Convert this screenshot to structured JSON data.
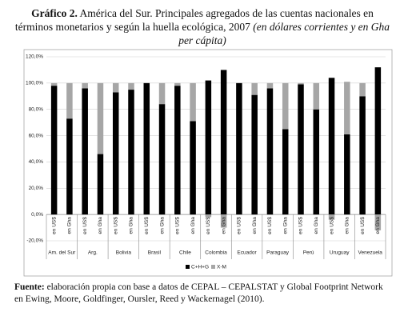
{
  "chart_data": {
    "type": "stacked_bar",
    "title_label": "Gráfico 2.",
    "title": "América del Sur. Principales agregados de las cuentas nacionales en términos monetarios y según la huella ecológica, 2007",
    "title_italic": "(en dólares corrientes y en Gha per cápita)",
    "categories": [
      "en US$",
      "en Gha",
      "en US$",
      "en Gha",
      "en US$",
      "en Gha",
      "en US$",
      "en Gha",
      "en US$",
      "en Gha",
      "en US$",
      "en Gha",
      "en US$",
      "en Gha",
      "en US$",
      "en Gha",
      "en US$",
      "en Gha",
      "en US$",
      "en Gha",
      "en US$",
      "en Gha"
    ],
    "groups": [
      "Am. del Sur",
      "Arg.",
      "Bolivia",
      "Brasil",
      "Chile",
      "Colombia",
      "Ecuador",
      "Paraguay",
      "Perú",
      "Uruguay",
      "Venezuela"
    ],
    "series": [
      {
        "name": "C+H+G",
        "color": "#000000",
        "values": [
          98,
          73,
          96,
          46,
          93,
          95,
          100,
          84,
          98,
          71,
          102,
          110,
          100,
          91,
          96,
          65,
          99,
          80,
          104,
          61,
          90,
          112
        ]
      },
      {
        "name": "X-M",
        "color": "#a6a6a6",
        "values": [
          2,
          27,
          4,
          54,
          7,
          5,
          0,
          16,
          2,
          29,
          -2,
          -10,
          0,
          9,
          4,
          35,
          1,
          20,
          -4,
          40,
          10,
          -12
        ]
      }
    ],
    "ylim": [
      -20,
      120
    ],
    "yticks": [
      {
        "value": -20,
        "label": "-20,0%"
      },
      {
        "value": 0,
        "label": "0,0%"
      },
      {
        "value": 20,
        "label": "20,0%"
      },
      {
        "value": 40,
        "label": "40,0%"
      },
      {
        "value": 60,
        "label": "60,0%"
      },
      {
        "value": 80,
        "label": "80,0%"
      },
      {
        "value": 100,
        "label": "100,0%"
      },
      {
        "value": 120,
        "label": "120,0%"
      }
    ],
    "grid": true,
    "source_label": "Fuente:",
    "source": "elaboración propia con base a datos de CEPAL – CEPALSTAT y Global Footprint Network en Ewing, Moore, Goldfinger, Oursler, Reed y Wackernagel (2010)."
  }
}
